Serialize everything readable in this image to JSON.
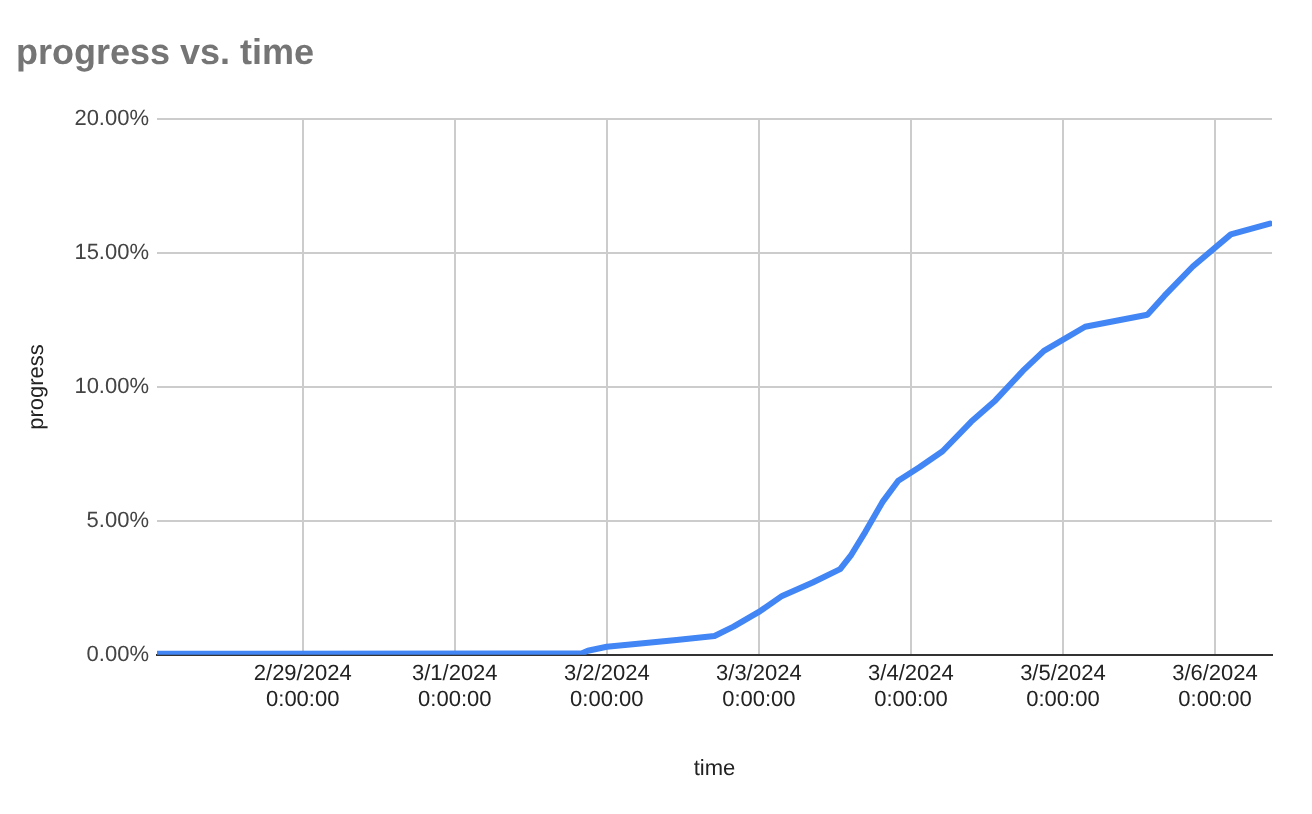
{
  "chart_data": {
    "type": "line",
    "title": "progress vs. time",
    "xlabel": "time",
    "ylabel": "progress",
    "x": [
      "2024-02-28T01:00",
      "2024-03-01T20:00",
      "2024-03-01T21:00",
      "2024-03-02T00:00",
      "2024-03-02T04:30",
      "2024-03-02T11:00",
      "2024-03-02T17:00",
      "2024-03-02T20:00",
      "2024-03-03T00:00",
      "2024-03-03T03:40",
      "2024-03-03T08:30",
      "2024-03-03T12:50",
      "2024-03-03T14:30",
      "2024-03-03T16:50",
      "2024-03-03T19:30",
      "2024-03-03T22:00",
      "2024-03-04T01:20",
      "2024-03-04T05:00",
      "2024-03-04T09:30",
      "2024-03-04T13:20",
      "2024-03-04T17:40",
      "2024-03-04T21:00",
      "2024-03-05T03:30",
      "2024-03-05T13:20",
      "2024-03-05T16:00",
      "2024-03-05T20:30",
      "2024-03-06T02:30",
      "2024-03-06T08:40"
    ],
    "series": [
      {
        "color": "#4285f4",
        "values": [
          0.04,
          0.05,
          0.15,
          0.3,
          0.4,
          0.55,
          0.7,
          1.05,
          1.6,
          2.2,
          2.7,
          3.2,
          3.7,
          4.6,
          5.7,
          6.5,
          7.0,
          7.6,
          8.7,
          9.5,
          10.6,
          11.35,
          12.25,
          12.7,
          13.4,
          14.5,
          15.7,
          16.1
        ]
      }
    ],
    "xlim": [
      "2024-02-28T01:00",
      "2024-03-06T09:00"
    ],
    "xticks": [
      {
        "value": "2024-02-29",
        "label": "2/29/2024 0:00:00"
      },
      {
        "value": "2024-03-01",
        "label": "3/1/2024 0:00:00"
      },
      {
        "value": "2024-03-02",
        "label": "3/2/2024 0:00:00"
      },
      {
        "value": "2024-03-03",
        "label": "3/3/2024 0:00:00"
      },
      {
        "value": "2024-03-04",
        "label": "3/4/2024 0:00:00"
      },
      {
        "value": "2024-03-05",
        "label": "3/5/2024 0:00:00"
      },
      {
        "value": "2024-03-06",
        "label": "3/6/2024 0:00:00"
      }
    ],
    "ylim": [
      0,
      20
    ],
    "yticks": [
      {
        "value": 0,
        "label": "0.00%"
      },
      {
        "value": 5,
        "label": "5.00%"
      },
      {
        "value": 10,
        "label": "10.00%"
      },
      {
        "value": 15,
        "label": "15.00%"
      },
      {
        "value": 20,
        "label": "20.00%"
      }
    ],
    "grid": true,
    "legend": false,
    "marker": "none",
    "line_style": "solid"
  }
}
